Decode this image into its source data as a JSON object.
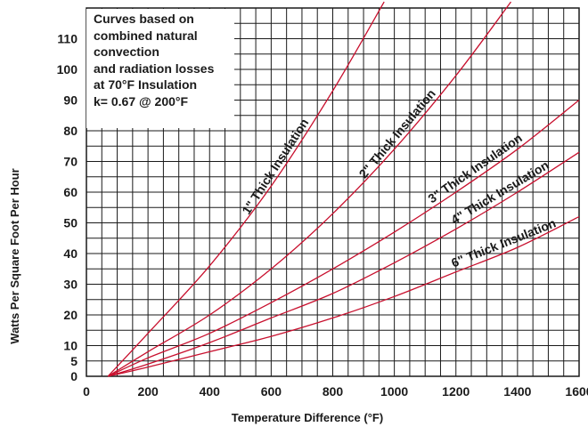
{
  "chart_data": {
    "type": "line",
    "title": "",
    "xlabel": "Temperature Difference (°F)",
    "ylabel": "Watts Per Square Foot Per Hour",
    "xlim": [
      0,
      1600
    ],
    "ylim": [
      0,
      120
    ],
    "x_ticks": [
      "0",
      "200",
      "400",
      "600",
      "800",
      "1000",
      "1200",
      "1400",
      "1600"
    ],
    "y_ticks": [
      {
        "value": 0,
        "label": "0"
      },
      {
        "value": 5,
        "label": "5"
      },
      {
        "value": 10,
        "label": "10"
      },
      {
        "value": 20,
        "label": "20"
      },
      {
        "value": 30,
        "label": "30"
      },
      {
        "value": 40,
        "label": "40"
      },
      {
        "value": 50,
        "label": "50"
      },
      {
        "value": 60,
        "label": "60"
      },
      {
        "value": 70,
        "label": "70"
      },
      {
        "value": 80,
        "label": "80"
      },
      {
        "value": 90,
        "label": "90"
      },
      {
        "value": 100,
        "label": "100"
      },
      {
        "value": 110,
        "label": "110"
      }
    ],
    "grid": true,
    "line_color": "#c8102e",
    "annotation": [
      "Curves based on",
      "combined natural",
      "convection",
      "and radiation losses",
      "at 70°F Insulation",
      "k= 0.67 @ 200°F"
    ],
    "series": [
      {
        "name": "1\" Thick Insulation",
        "x": [
          70,
          200,
          400,
          600,
          800
        ],
        "y": [
          0,
          14,
          36,
          62,
          93
        ],
        "y_end": 122
      },
      {
        "name": "2\" Thick Insulation",
        "x": [
          70,
          200,
          400,
          600,
          800,
          1000,
          1200
        ],
        "y": [
          0,
          8,
          20,
          35,
          53,
          74,
          98
        ],
        "y_end": 122
      },
      {
        "name": "3\" Thick Insulation",
        "x": [
          70,
          200,
          400,
          600,
          800,
          1000,
          1200,
          1400,
          1600
        ],
        "y": [
          0,
          6,
          14,
          24,
          35,
          47,
          60,
          74,
          90
        ]
      },
      {
        "name": "4\" Thick Insulation",
        "x": [
          70,
          200,
          400,
          600,
          800,
          1000,
          1200,
          1400,
          1600
        ],
        "y": [
          0,
          4,
          11,
          19,
          27,
          37,
          48,
          60,
          73
        ]
      },
      {
        "name": "6\" Thick Insulation",
        "x": [
          70,
          200,
          400,
          600,
          800,
          1000,
          1200,
          1400,
          1600
        ],
        "y": [
          0,
          3,
          8,
          13,
          19,
          26,
          34,
          42,
          52
        ]
      }
    ]
  }
}
